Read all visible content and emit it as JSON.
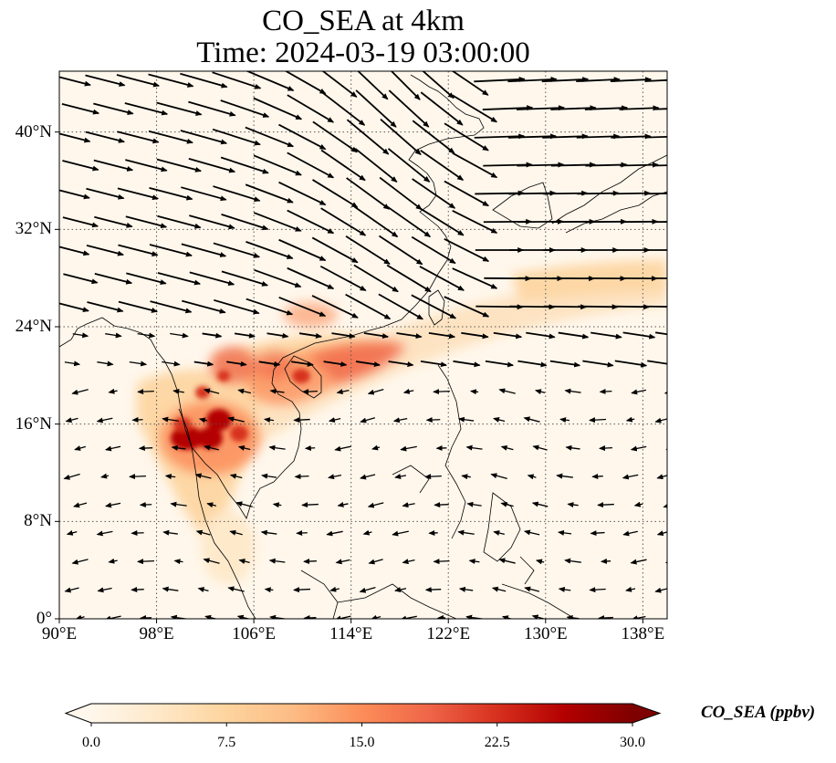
{
  "title_line1": "CO_SEA at 4km",
  "title_line2": "Time: 2024-03-19 03:00:00",
  "map": {
    "extent": {
      "lon_min": 90,
      "lon_max": 140,
      "lat_min": 0,
      "lat_max": 45
    },
    "lon_ticks": [
      "90°E",
      "98°E",
      "106°E",
      "114°E",
      "122°E",
      "130°E",
      "138°E"
    ],
    "lon_tick_values": [
      90,
      98,
      106,
      114,
      122,
      130,
      138
    ],
    "lat_ticks": [
      "0°",
      "8°N",
      "16°N",
      "24°N",
      "32°N",
      "40°N"
    ],
    "lat_tick_values": [
      0,
      8,
      16,
      24,
      32,
      40
    ],
    "gridlines": "dotted",
    "coastlines": true
  },
  "colorbar": {
    "label": "CO_SEA (ppbv)",
    "ticks": [
      "0.0",
      "7.5",
      "15.0",
      "22.5",
      "30.0"
    ],
    "tick_values": [
      0,
      7.5,
      15,
      22.5,
      30
    ],
    "extend": "both",
    "colormap": "OrRd",
    "colors": [
      "#fff7ec",
      "#fee8c8",
      "#fdd49e",
      "#fdbb84",
      "#fc8d59",
      "#ef6548",
      "#d7301f",
      "#b30000",
      "#7f0000"
    ]
  },
  "field": {
    "variable": "CO_SEA",
    "units": "ppbv",
    "range": [
      0,
      30
    ]
  },
  "wind_vectors": {
    "color": "#000000"
  }
}
